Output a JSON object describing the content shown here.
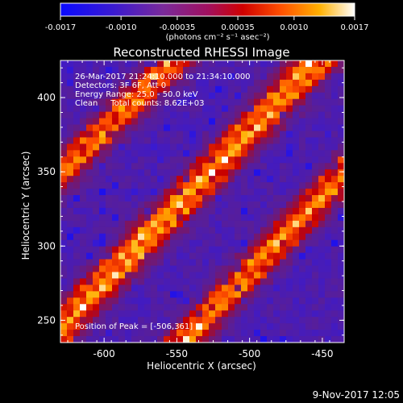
{
  "chart_data": {
    "type": "heatmap",
    "title": "Reconstructed RHESSI Image",
    "xlabel": "Heliocentric X (arcsec)",
    "ylabel": "Heliocentric Y (arcsec)",
    "colorbar": {
      "ticks": [
        "-0.0017",
        "-0.0010",
        "-0.00035",
        "0.00035",
        "0.0010",
        "0.0017"
      ],
      "min": -0.0017,
      "max": 0.0017,
      "unit_label": "(photons cm⁻² s⁻¹ asec⁻²)"
    },
    "xlim": [
      -630,
      -435
    ],
    "ylim": [
      235,
      425
    ],
    "xticks": [
      -600,
      -550,
      -500,
      -450
    ],
    "yticks": [
      250,
      300,
      350,
      400
    ],
    "xtick_labels": [
      "-600",
      "-550",
      "-500",
      "-450"
    ],
    "ytick_labels": [
      "250",
      "300",
      "350",
      "400"
    ],
    "annotations": [
      "26-Mar-2017 21:24:10.000 to 21:34:10.000",
      "Detectors: 3F 6F, Att 0",
      "Energy Range: 25.0 - 50.0 keV",
      "Clean     Total counts: 8.62E+03"
    ],
    "peak_label": "Position of Peak = [-506,361]",
    "peak": [
      -506,
      361
    ],
    "grid": false
  },
  "footer": {
    "timestamp": "9-Nov-2017 12:05"
  }
}
